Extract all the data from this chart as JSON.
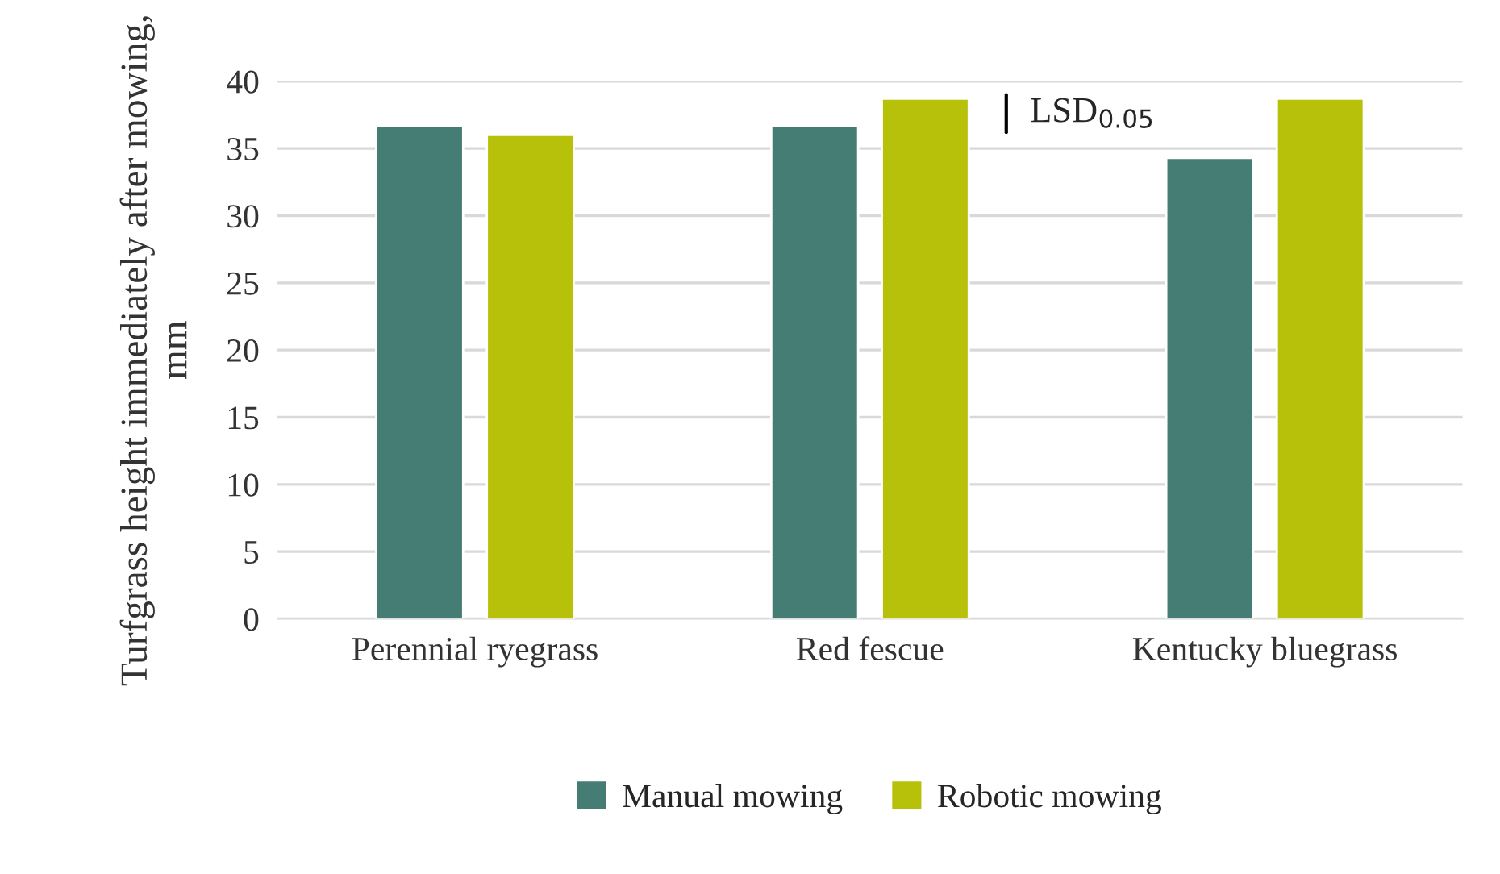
{
  "chart_data": {
    "type": "bar",
    "ylabel": "Turfgrass height immediately after mowing, mm",
    "categories": [
      "Perennial ryegrass",
      "Red fescue",
      "Kentucky bluegrass"
    ],
    "series": [
      {
        "name": "Manual mowing",
        "color": "#457c74",
        "values": [
          36.7,
          36.7,
          34.3
        ]
      },
      {
        "name": "Robotic mowing",
        "color": "#b8c10a",
        "values": [
          36.0,
          38.7,
          38.7
        ]
      }
    ],
    "ylim": [
      0,
      40
    ],
    "yticks": [
      0,
      5,
      10,
      15,
      20,
      25,
      30,
      35,
      40
    ],
    "grid": "y",
    "legend": "bottom",
    "annotations": [
      "LSD$_{0.05}$"
    ]
  }
}
